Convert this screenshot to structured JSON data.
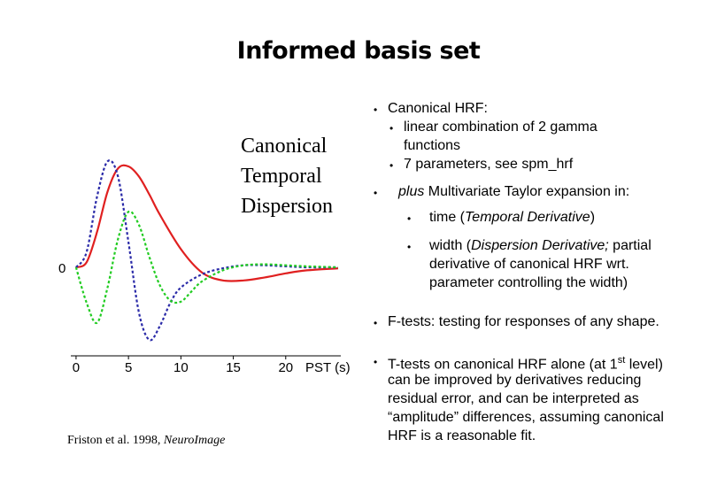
{
  "slide": {
    "title": "Informed basis set",
    "citation_prefix": "Friston et al. 1998, ",
    "citation_journal": "NeuroImage"
  },
  "legend": {
    "canonical": "Canonical",
    "temporal": "Temporal",
    "dispersion": "Dispersion"
  },
  "colors": {
    "canonical": "#e02020",
    "temporal": "#2a2aa8",
    "dispersion": "#22cc22"
  },
  "chart_data": {
    "type": "line",
    "xlabel": "PST (s)",
    "xticks": [
      "0",
      "5",
      "10",
      "15",
      "20"
    ],
    "y_zero_label": "0",
    "xlim": [
      -0.5,
      25
    ],
    "series": [
      {
        "name": "Canonical",
        "style": "solid",
        "x": [
          0,
          1,
          2,
          3,
          4,
          5,
          6,
          7,
          8,
          10,
          12,
          14,
          16,
          18,
          20,
          22,
          25
        ],
        "y": [
          0,
          0.05,
          0.35,
          0.75,
          0.98,
          1.0,
          0.9,
          0.72,
          0.52,
          0.18,
          -0.05,
          -0.13,
          -0.13,
          -0.1,
          -0.06,
          -0.03,
          -0.01
        ]
      },
      {
        "name": "Temporal",
        "style": "dashed",
        "x": [
          0,
          1,
          2,
          3,
          4,
          5,
          6,
          7,
          8,
          9,
          10,
          12,
          14,
          16,
          18,
          20,
          22,
          25
        ],
        "y": [
          0,
          0.15,
          0.7,
          1.05,
          0.9,
          0.25,
          -0.45,
          -0.72,
          -0.58,
          -0.35,
          -0.2,
          -0.07,
          -0.01,
          0.02,
          0.02,
          0.01,
          0.0,
          0.0
        ]
      },
      {
        "name": "Dispersion",
        "style": "dashed",
        "x": [
          0,
          1,
          2,
          3,
          4,
          5,
          6,
          7,
          8,
          9,
          10,
          11,
          12,
          14,
          16,
          18,
          20,
          22,
          25
        ],
        "y": [
          0,
          -0.35,
          -0.55,
          -0.2,
          0.28,
          0.55,
          0.42,
          0.1,
          -0.18,
          -0.33,
          -0.34,
          -0.24,
          -0.14,
          -0.03,
          0.02,
          0.03,
          0.02,
          0.01,
          0.0
        ]
      }
    ]
  },
  "bullets": {
    "b1": "Canonical HRF:",
    "b1a_line1": "linear combination of 2 gamma",
    "b1a_line2": "functions",
    "b1b": "7 parameters, see spm_hrf",
    "b2_em": "plus",
    "b2_rest": " Multivariate Taylor expansion in:",
    "b2a_pre": "time (",
    "b2a_em": "Temporal Derivative",
    "b2a_post": ")",
    "b2b_pre": "width (",
    "b2b_em": "Dispersion Derivative;",
    "b2b_post": " partial",
    "b2b_line2": "derivative of canonical HRF wrt.",
    "b2b_line3": "parameter controlling the width)",
    "b3": "F-tests: testing for responses of any shape.",
    "b4_line1_pre": "T-tests on canonical HRF alone (at 1",
    "b4_line1_sup": "st",
    "b4_line1_post": " level)",
    "b4_line2": "can be improved by derivatives reducing",
    "b4_line3": "residual error, and can be interpreted as",
    "b4_line4": "“amplitude” differences, assuming canonical",
    "b4_line5": "HRF is a reasonable fit."
  }
}
